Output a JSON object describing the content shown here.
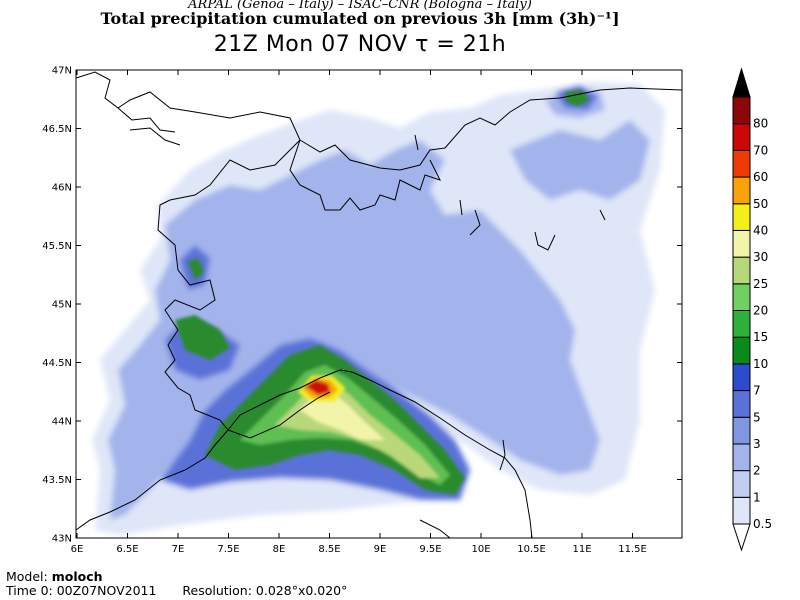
{
  "header": {
    "line1": "ARPAL (Genoa – Italy)   –   ISAC–CNR (Bologna – Italy)",
    "line2": "Total precipitation cumulated on previous 3h [mm (3h)⁻¹]",
    "line3": "21Z Mon 07 NOV   τ = 21h"
  },
  "map": {
    "lon_labels": [
      "6E",
      "6.5E",
      "7E",
      "7.5E",
      "8E",
      "8.5E",
      "9E",
      "9.5E",
      "10E",
      "10.5E",
      "11E",
      "11.5E"
    ],
    "lat_labels": [
      "47N",
      "46.5N",
      "46N",
      "45.5N",
      "45N",
      "44.5N",
      "44N",
      "43.5N",
      "43N"
    ]
  },
  "colorbar": {
    "levels": [
      "0.5",
      "1",
      "2",
      "3",
      "5",
      "7",
      "10",
      "15",
      "20",
      "25",
      "30",
      "40",
      "50",
      "60",
      "70",
      "80"
    ],
    "colors": [
      "#ffffff",
      "#dfe6f8",
      "#c2cdf2",
      "#a3b4ec",
      "#8197e2",
      "#5a72d8",
      "#2b4ccc",
      "#0a8a1a",
      "#2fb03a",
      "#6fcf60",
      "#b5d879",
      "#f2f4aa",
      "#f2ef1a",
      "#f7a20a",
      "#f03a05",
      "#cc0707",
      "#8c0808",
      "#000000"
    ]
  },
  "footer": {
    "model_label": "Model:",
    "model_value": "moloch",
    "time_label": "Time 0:",
    "time_value": "00Z07NOV2011",
    "res_label": "Resolution:",
    "res_value": "0.028°x0.020°"
  }
}
